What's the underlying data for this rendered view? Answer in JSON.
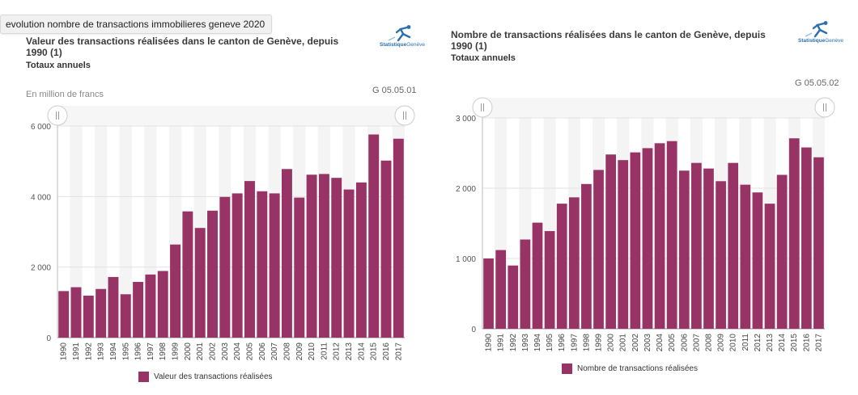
{
  "search": {
    "query": "evolution nombre de transactions immobilieres geneve 2020"
  },
  "colors": {
    "bar": "#973365",
    "band": "#f4f4f4",
    "grid": "#e2e2e2"
  },
  "icons": {
    "logo": "statistique-geneve-logo",
    "handle": "range-handle-icon"
  },
  "logo": {
    "text_bold": "Statistique",
    "text_light": "Genève"
  },
  "charts": {
    "left": {
      "title_line1": "Valeur des transactions réalisées dans le canton de Genève, depuis",
      "title_line2": "1990 (1)",
      "subtitle": "Totaux annuels",
      "code": "G 05.05.01",
      "unit": "En million de francs",
      "legend": "Valeur des transactions réalisées"
    },
    "right": {
      "title_line1": "Nombre de transactions réalisées dans le canton de Genève, depuis",
      "title_line2": "1990 (1)",
      "subtitle": "Totaux annuels",
      "code": "G 05.05.02",
      "legend": "Nombre de transactions réalisées"
    }
  },
  "chart_data": [
    {
      "type": "bar",
      "title": "Valeur des transactions réalisées dans le canton de Genève, depuis 1990 (1)",
      "subtitle": "Totaux annuels",
      "ylabel": "En million de francs",
      "ylim": [
        0,
        6000
      ],
      "yticks": [
        "0",
        "2 000",
        "4 000",
        "6 000"
      ],
      "ytick_values": [
        0,
        2000,
        4000,
        6000
      ],
      "categories": [
        "1990",
        "1991",
        "1992",
        "1993",
        "1994",
        "1995",
        "1996",
        "1997",
        "1998",
        "1999",
        "2000",
        "2001",
        "2002",
        "2003",
        "2004",
        "2005",
        "2006",
        "2007",
        "2008",
        "2009",
        "2010",
        "2011",
        "2012",
        "2013",
        "2014",
        "2015",
        "2016",
        "2017"
      ],
      "series": [
        {
          "name": "Valeur des transactions réalisées",
          "values": [
            1320,
            1430,
            1190,
            1380,
            1720,
            1230,
            1580,
            1790,
            1890,
            2640,
            3580,
            3110,
            3600,
            3990,
            4090,
            4440,
            4150,
            4090,
            4780,
            3970,
            4620,
            4640,
            4530,
            4200,
            4400,
            5760,
            5020,
            5640
          ]
        }
      ],
      "legend_position": "bottom-center",
      "grid": true
    },
    {
      "type": "bar",
      "title": "Nombre de transactions réalisées dans le canton de Genève, depuis 1990 (1)",
      "subtitle": "Totaux annuels",
      "ylim": [
        0,
        3000
      ],
      "yticks": [
        "0",
        "1 000",
        "2 000",
        "3 000"
      ],
      "ytick_values": [
        0,
        1000,
        2000,
        3000
      ],
      "categories": [
        "1990",
        "1991",
        "1992",
        "1993",
        "1994",
        "1995",
        "1996",
        "1997",
        "1998",
        "1999",
        "2000",
        "2001",
        "2002",
        "2003",
        "2004",
        "2005",
        "2006",
        "2007",
        "2008",
        "2009",
        "2010",
        "2011",
        "2012",
        "2013",
        "2014",
        "2015",
        "2016",
        "2017"
      ],
      "series": [
        {
          "name": "Nombre de transactions réalisées",
          "values": [
            1000,
            1120,
            900,
            1270,
            1510,
            1390,
            1780,
            1870,
            2060,
            2260,
            2480,
            2400,
            2510,
            2570,
            2640,
            2670,
            2250,
            2360,
            2280,
            2100,
            2360,
            2050,
            1940,
            1780,
            2190,
            2710,
            2580,
            2440
          ]
        }
      ],
      "legend_position": "bottom-center",
      "grid": true
    }
  ]
}
